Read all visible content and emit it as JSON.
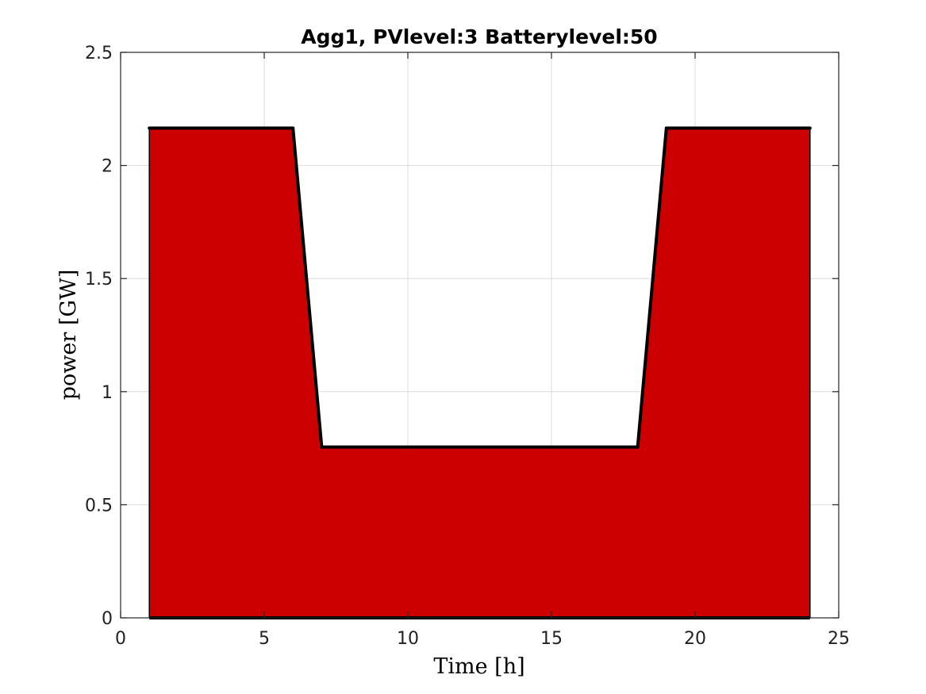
{
  "chart_data": {
    "type": "area",
    "title": "Agg1, PVlevel:3 Batterylevel:50",
    "xlabel": "Time [h]",
    "ylabel": "power [GW]",
    "xlim": [
      0,
      25
    ],
    "ylim": [
      0,
      2.5
    ],
    "xticks": [
      "0",
      "5",
      "10",
      "15",
      "20",
      "25"
    ],
    "yticks": [
      "0",
      "0.5",
      "1",
      "1.5",
      "2",
      "2.5"
    ],
    "grid": true,
    "legend": "none",
    "series": [
      {
        "x": [
          1,
          6,
          7,
          18,
          19,
          24
        ],
        "y": [
          2.165,
          2.165,
          0.755,
          0.755,
          2.165,
          2.165
        ],
        "fill_color": "#cc0000",
        "line_color": "#000000"
      }
    ]
  }
}
